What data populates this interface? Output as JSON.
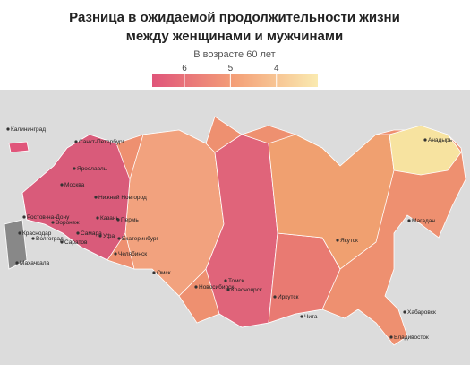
{
  "header": {
    "title_lines": [
      "Разница в ожидаемой продолжительности жизни",
      "между женщинами и мужчинами"
    ],
    "subtitle": "В возрасте 60 лет"
  },
  "legend": {
    "lim": [
      6.7,
      3.1
    ],
    "ticks": [
      6,
      5,
      4
    ],
    "colors": [
      "#e0557a",
      "#f4a078",
      "#faeab0"
    ]
  },
  "cities": [
    "Калининград",
    "Санкт-Петербург",
    "Москва",
    "Ярославль",
    "Нижний Новгород",
    "Воронеж",
    "Ростов-на-Дону",
    "Краснодар",
    "Волгоград",
    "Саратов",
    "Казань",
    "Самара",
    "Пермь",
    "Уфа",
    "Екатеринбург",
    "Челябинск",
    "Махачкала",
    "Омск",
    "Томск",
    "Новосибирск",
    "Красноярск",
    "Иркутск",
    "Чита",
    "Якутск",
    "Магадан",
    "Анадырь",
    "Хабаровск",
    "Владивосток"
  ]
}
